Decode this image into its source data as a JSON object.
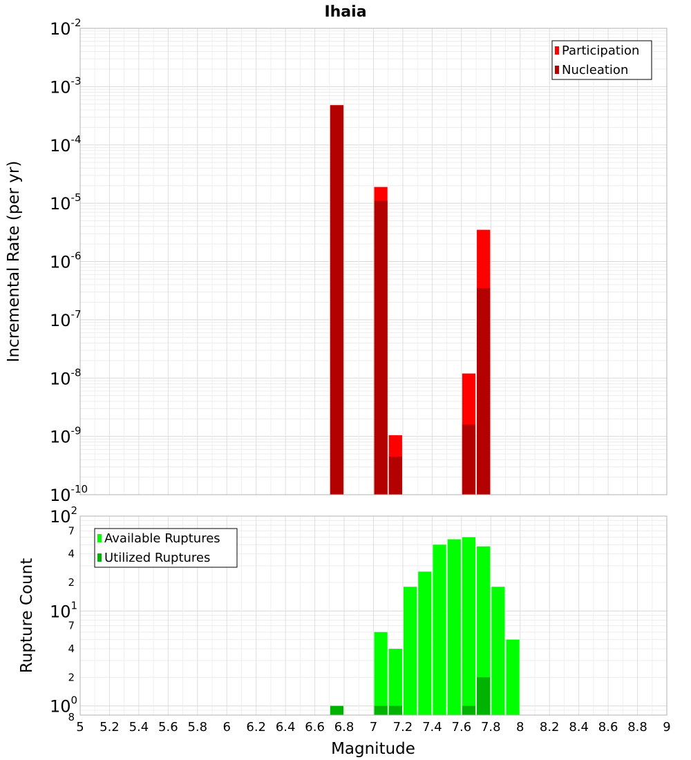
{
  "chart_data": {
    "title": "Ihaia",
    "type": "bar",
    "xlabel": "Magnitude",
    "x_ticks": [
      "5",
      "5.2",
      "5.4",
      "5.6",
      "5.8",
      "6",
      "6.2",
      "6.4",
      "6.6",
      "6.8",
      "7",
      "7.2",
      "7.4",
      "7.6",
      "7.8",
      "8",
      "8.2",
      "8.4",
      "8.6",
      "8.8",
      "9"
    ],
    "xlim": [
      5,
      9
    ],
    "bin_width": 0.1,
    "panels": [
      {
        "ylabel": "Incremental Rate (per yr)",
        "y_scale": "log",
        "ylim": [
          1e-10,
          0.01
        ],
        "y_tick_labels": [
          {
            "mantissa": "10",
            "exponent": "-2"
          },
          {
            "mantissa": "10",
            "exponent": "-3"
          },
          {
            "mantissa": "10",
            "exponent": "-4"
          },
          {
            "mantissa": "10",
            "exponent": "-5"
          },
          {
            "mantissa": "10",
            "exponent": "-6"
          },
          {
            "mantissa": "10",
            "exponent": "-7"
          },
          {
            "mantissa": "10",
            "exponent": "-8"
          },
          {
            "mantissa": "10",
            "exponent": "-9"
          },
          {
            "mantissa": "10",
            "exponent": "-10"
          }
        ],
        "legend_position": "top-right",
        "series": [
          {
            "name": "Participation",
            "color": "#ff0000",
            "x": [
              6.75,
              7.05,
              7.15,
              7.65,
              7.75
            ],
            "values": [
              0.00048,
              1.9e-05,
              1.05e-09,
              1.2e-08,
              3.5e-06
            ]
          },
          {
            "name": "Nucleation",
            "color": "#b30000",
            "x": [
              6.75,
              7.05,
              7.15,
              7.65,
              7.75
            ],
            "values": [
              0.00048,
              1.1e-05,
              4.5e-10,
              1.6e-09,
              3.5e-07
            ]
          }
        ]
      },
      {
        "ylabel": "Rupture Count",
        "y_scale": "log",
        "ylim": [
          0.8,
          100
        ],
        "y_tick_labels": [
          {
            "mantissa": "10",
            "exponent": "2"
          },
          {
            "mantissa": "10",
            "exponent": "1"
          },
          {
            "mantissa": "10",
            "exponent": "0"
          }
        ],
        "minor_tick_labels": [
          "7",
          "4",
          "2",
          "7",
          "4",
          "2",
          "8"
        ],
        "legend_position": "top-left",
        "series": [
          {
            "name": "Available Ruptures",
            "color": "#00ff00",
            "x": [
              7.05,
              7.15,
              7.25,
              7.35,
              7.45,
              7.55,
              7.65,
              7.75,
              7.85,
              7.95
            ],
            "values": [
              6,
              4,
              18,
              26,
              50,
              57,
              60,
              48,
              18,
              5
            ]
          },
          {
            "name": "Utilized Ruptures",
            "color": "#00b300",
            "x": [
              6.75,
              7.05,
              7.15,
              7.65,
              7.75
            ],
            "values": [
              1,
              1,
              1,
              1,
              2
            ]
          }
        ]
      }
    ]
  }
}
